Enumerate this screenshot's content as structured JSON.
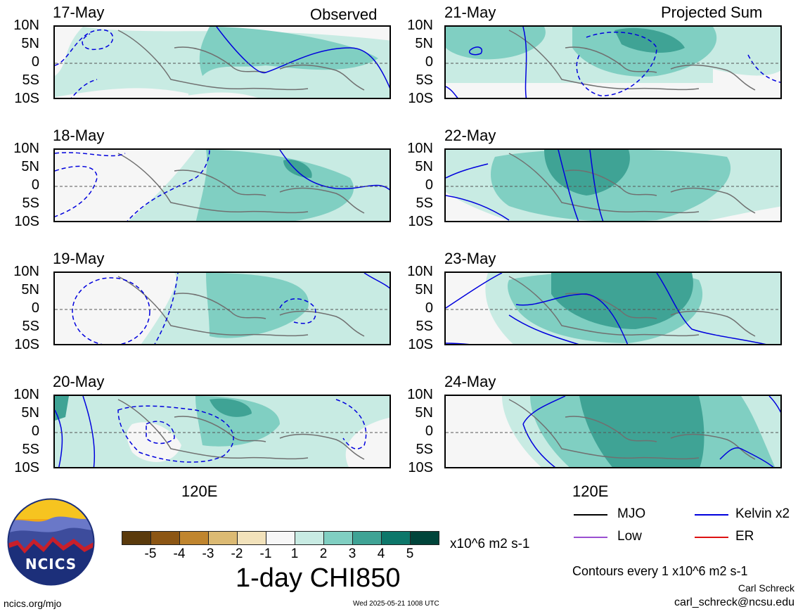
{
  "header_left": "Observed",
  "header_right": "Projected Sum",
  "panels_left": [
    {
      "date": "17-May"
    },
    {
      "date": "18-May"
    },
    {
      "date": "19-May"
    },
    {
      "date": "20-May"
    }
  ],
  "panels_right": [
    {
      "date": "21-May"
    },
    {
      "date": "22-May"
    },
    {
      "date": "23-May"
    },
    {
      "date": "24-May"
    }
  ],
  "y_ticks": [
    "10N",
    "5N",
    "0",
    "5S",
    "10S"
  ],
  "x_tick": "120E",
  "colorbar": {
    "colors": [
      "#5a3a0c",
      "#8c5614",
      "#c0852e",
      "#dcba73",
      "#f2e2bb",
      "#f7f7f7",
      "#c8ebe3",
      "#80cfc2",
      "#3fa395",
      "#0d776a",
      "#00443a"
    ],
    "labels": [
      "-5",
      "-4",
      "-3",
      "-2",
      "-1",
      "1",
      "2",
      "3",
      "4",
      "5"
    ],
    "units": "x10^6 m2 s-1"
  },
  "plot_title": "1-day CHI850",
  "legend": [
    {
      "label": "MJO",
      "color": "#000000"
    },
    {
      "label": "Kelvin x2",
      "color": "#0000dd"
    },
    {
      "label": "Low",
      "color": "#9a4fd0"
    },
    {
      "label": "ER",
      "color": "#dd1111"
    }
  ],
  "contour_note": "Contours every 1 x10^6 m2 s-1",
  "credit_name": "Carl Schreck",
  "credit_email": "carl_schreck@ncsu.edu",
  "site": "ncics.org/mjo",
  "timestamp": "Wed 2025-05-21 1008 UTC",
  "logo_text": "NCICS"
}
